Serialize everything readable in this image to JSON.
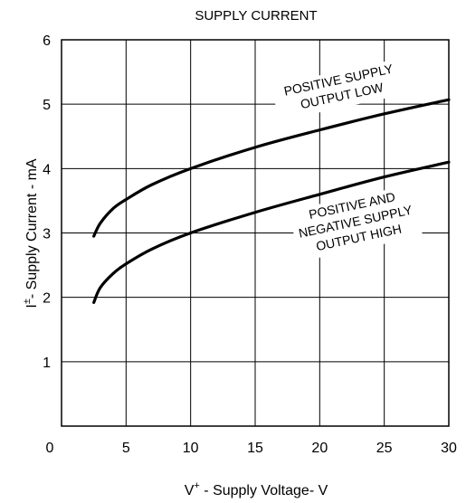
{
  "chart_data": {
    "type": "line",
    "title": "SUPPLY CURRENT",
    "xlabel": {
      "main": "V",
      "sup": "+",
      "rest": " - Supply Voltage- V"
    },
    "ylabel": {
      "main": "I",
      "sup": "±",
      "rest": "- Supply Current - mA"
    },
    "xlim": [
      0,
      30
    ],
    "ylim": [
      0,
      6
    ],
    "xticks": [
      "0",
      "5",
      "10",
      "15",
      "20",
      "25",
      "30"
    ],
    "yticks": [
      "1",
      "2",
      "3",
      "4",
      "5",
      "6"
    ],
    "grid": true,
    "series": [
      {
        "label_lines": [
          "POSITIVE  SUPPLY",
          "OUTPUT LOW"
        ],
        "x": [
          2.5,
          3,
          4,
          5,
          7,
          10,
          15,
          20,
          25,
          30
        ],
        "y": [
          2.95,
          3.15,
          3.38,
          3.52,
          3.75,
          4.0,
          4.33,
          4.6,
          4.85,
          5.07
        ]
      },
      {
        "label_lines": [
          "POSITIVE AND",
          "NEGATIVE SUPPLY",
          "OUTPUT HIGH"
        ],
        "x": [
          2.5,
          3,
          4,
          5,
          7,
          10,
          15,
          20,
          25,
          30
        ],
        "y": [
          1.92,
          2.15,
          2.37,
          2.52,
          2.75,
          3.0,
          3.32,
          3.6,
          3.87,
          4.1
        ]
      }
    ]
  }
}
